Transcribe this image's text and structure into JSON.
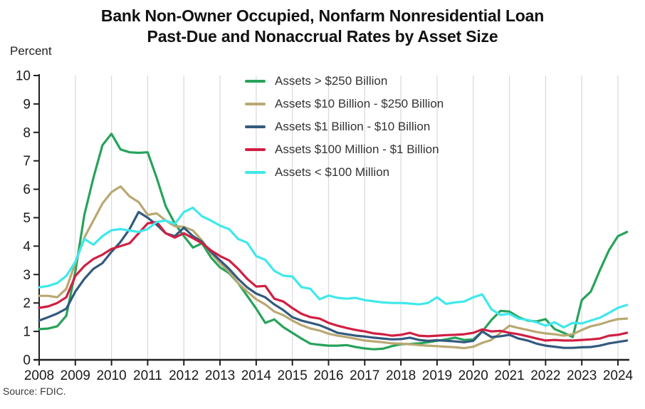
{
  "title": {
    "line1": "Bank Non-Owner Occupied, Nonfarm Nonresidential Loan",
    "line2": "Past-Due and Nonaccrual Rates by Asset Size"
  },
  "axis": {
    "y_unit_label": "Percent",
    "y_ticks": [
      0,
      1,
      2,
      3,
      4,
      5,
      6,
      7,
      8,
      9,
      10
    ],
    "x_tick_labels": [
      2008,
      2009,
      2010,
      2011,
      2012,
      2013,
      2014,
      2015,
      2016,
      2017,
      2018,
      2019,
      2020,
      2021,
      2022,
      2023,
      2024
    ]
  },
  "source": "Source: FDIC.",
  "colors": {
    "axis": "#1f1f1f",
    "grid": "#d9d9d9",
    "tick_text": "#1a1a1a"
  },
  "chart_data": {
    "type": "line",
    "title": "Bank Non-Owner Occupied, Nonfarm Nonresidential Loan Past-Due and Nonaccrual Rates by Asset Size",
    "xlabel": "",
    "ylabel": "Percent",
    "ylim": [
      0,
      10
    ],
    "grid": "vertical-yearly",
    "legend_position": "top-center-inside",
    "x_start": 2008.0,
    "x_step": 0.25,
    "x_end": 2024.25,
    "x_tick_labels": [
      2008,
      2009,
      2010,
      2011,
      2012,
      2013,
      2014,
      2015,
      2016,
      2017,
      2018,
      2019,
      2020,
      2021,
      2022,
      2023,
      2024
    ],
    "series": [
      {
        "name": "Assets > $250 Billion",
        "color": "#27a35a",
        "values": [
          1.08,
          1.1,
          1.18,
          1.55,
          3.1,
          5.1,
          6.4,
          7.55,
          7.95,
          7.4,
          7.3,
          7.28,
          7.3,
          6.4,
          5.4,
          4.8,
          4.35,
          3.95,
          4.1,
          3.6,
          3.25,
          3.05,
          2.7,
          2.25,
          1.8,
          1.3,
          1.42,
          1.15,
          0.95,
          0.75,
          0.57,
          0.53,
          0.5,
          0.5,
          0.52,
          0.45,
          0.4,
          0.37,
          0.39,
          0.48,
          0.55,
          0.56,
          0.58,
          0.62,
          0.67,
          0.72,
          0.78,
          0.7,
          0.72,
          1.0,
          1.4,
          1.72,
          1.7,
          1.5,
          1.38,
          1.35,
          1.43,
          1.08,
          0.95,
          0.8,
          2.1,
          2.4,
          3.15,
          3.85,
          4.35,
          4.5
        ]
      },
      {
        "name": "Assets $10 Billion - $250 Billion",
        "color": "#b9a872",
        "values": [
          2.25,
          2.25,
          2.2,
          2.5,
          3.4,
          4.3,
          4.9,
          5.5,
          5.9,
          6.1,
          5.75,
          5.55,
          5.1,
          5.15,
          4.9,
          4.7,
          4.68,
          4.55,
          4.2,
          3.75,
          3.4,
          3.1,
          2.7,
          2.4,
          2.13,
          1.95,
          1.7,
          1.57,
          1.38,
          1.22,
          1.1,
          1.03,
          0.92,
          0.85,
          0.8,
          0.74,
          0.68,
          0.65,
          0.62,
          0.58,
          0.57,
          0.55,
          0.52,
          0.5,
          0.48,
          0.46,
          0.44,
          0.41,
          0.46,
          0.6,
          0.7,
          0.95,
          1.2,
          1.12,
          1.05,
          0.98,
          0.93,
          0.9,
          0.85,
          0.9,
          1.05,
          1.18,
          1.25,
          1.35,
          1.43,
          1.45
        ]
      },
      {
        "name": "Assets $1 Billion - $10 Billion",
        "color": "#33597f",
        "values": [
          1.38,
          1.5,
          1.63,
          1.8,
          2.4,
          2.85,
          3.2,
          3.4,
          3.8,
          4.15,
          4.6,
          5.2,
          5.0,
          4.75,
          4.45,
          4.35,
          4.65,
          4.35,
          4.15,
          3.8,
          3.5,
          3.2,
          2.85,
          2.55,
          2.33,
          2.2,
          1.95,
          1.75,
          1.5,
          1.38,
          1.3,
          1.22,
          1.09,
          0.95,
          0.9,
          0.85,
          0.82,
          0.78,
          0.75,
          0.72,
          0.73,
          0.78,
          0.7,
          0.67,
          0.69,
          0.67,
          0.65,
          0.62,
          0.67,
          1.0,
          0.8,
          0.83,
          0.88,
          0.75,
          0.68,
          0.57,
          0.5,
          0.46,
          0.42,
          0.42,
          0.44,
          0.45,
          0.5,
          0.58,
          0.63,
          0.68
        ]
      },
      {
        "name": "Assets $100 Million - $1 Billion",
        "color": "#d01f42",
        "values": [
          1.83,
          1.88,
          2.0,
          2.2,
          2.95,
          3.3,
          3.55,
          3.7,
          3.9,
          4.0,
          4.1,
          4.45,
          4.8,
          4.85,
          4.45,
          4.3,
          4.45,
          4.28,
          4.1,
          3.85,
          3.65,
          3.5,
          3.2,
          2.85,
          2.58,
          2.6,
          2.15,
          2.05,
          1.82,
          1.62,
          1.5,
          1.45,
          1.3,
          1.2,
          1.12,
          1.05,
          1.0,
          0.93,
          0.9,
          0.85,
          0.88,
          0.95,
          0.85,
          0.83,
          0.85,
          0.87,
          0.88,
          0.9,
          0.95,
          1.07,
          1.0,
          1.02,
          0.95,
          0.9,
          0.83,
          0.75,
          0.68,
          0.7,
          0.68,
          0.68,
          0.7,
          0.72,
          0.75,
          0.85,
          0.88,
          0.95
        ]
      },
      {
        "name": "Assets < $100 Million",
        "color": "#3fe8ec",
        "values": [
          2.55,
          2.6,
          2.7,
          2.95,
          3.45,
          4.25,
          4.05,
          4.35,
          4.56,
          4.6,
          4.55,
          4.5,
          4.6,
          4.85,
          4.9,
          4.78,
          5.2,
          5.35,
          5.05,
          4.9,
          4.72,
          4.6,
          4.25,
          4.12,
          3.65,
          3.52,
          3.13,
          2.96,
          2.93,
          2.56,
          2.5,
          2.13,
          2.26,
          2.18,
          2.15,
          2.18,
          2.1,
          2.06,
          2.02,
          2.0,
          2.0,
          1.98,
          1.95,
          2.0,
          2.2,
          1.97,
          2.02,
          2.05,
          2.2,
          2.3,
          1.78,
          1.58,
          1.62,
          1.45,
          1.4,
          1.32,
          1.2,
          1.32,
          1.14,
          1.3,
          1.28,
          1.38,
          1.48,
          1.65,
          1.83,
          1.93
        ]
      }
    ]
  }
}
